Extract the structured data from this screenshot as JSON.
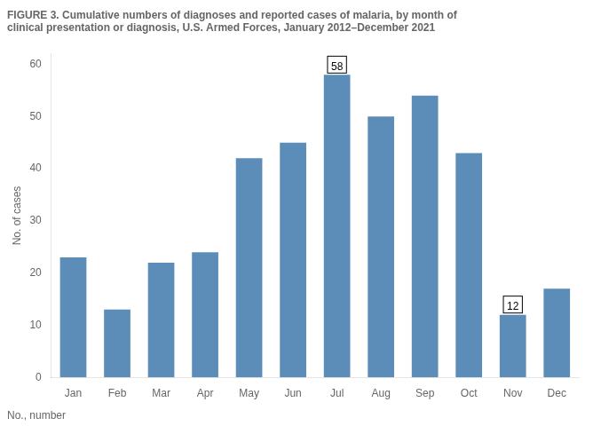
{
  "chart_data": {
    "type": "bar",
    "title": "FIGURE 3. Cumulative numbers of diagnoses and reported cases of malaria, by month of\nclinical presentation or diagnosis, U.S. Armed Forces, January 2012–December 2021",
    "categories": [
      "Jan",
      "Feb",
      "Mar",
      "Apr",
      "May",
      "Jun",
      "Jul",
      "Aug",
      "Sep",
      "Oct",
      "Nov",
      "Dec"
    ],
    "values": [
      23,
      13,
      22,
      24,
      42,
      45,
      58,
      50,
      54,
      43,
      12,
      17
    ],
    "color": "#5b8db8",
    "y_label": "No. of cases",
    "ylim": [
      0,
      62
    ],
    "yticks": [
      0,
      10,
      20,
      30,
      40,
      50,
      60
    ],
    "grid": false,
    "annotations": [
      {
        "category": "Jul",
        "text": "58"
      },
      {
        "category": "Nov",
        "text": "12"
      }
    ],
    "footnote": "No., number"
  }
}
